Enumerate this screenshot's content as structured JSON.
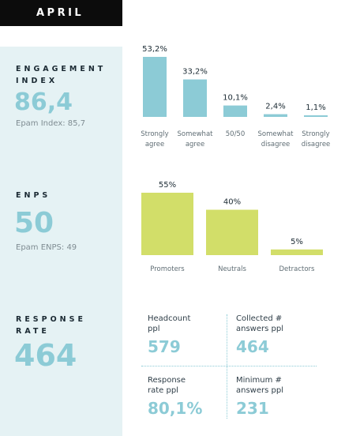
{
  "header": {
    "month": "APRIL"
  },
  "colors": {
    "engagement_bar": "#8ccbd6",
    "enps_bar": "#d2de69",
    "value_blue": "#8ccbd6",
    "sidebar_bg": "#e5f2f4"
  },
  "engagement": {
    "title_line1": "ENGAGEMENT",
    "title_line2": "INDEX",
    "value": "86,4",
    "benchmark": "Epam Index: 85,7"
  },
  "enps": {
    "title": "ENPS",
    "value": "50",
    "benchmark": "Epam ENPS: 49"
  },
  "response_rate": {
    "title_line1": "RESPONSE",
    "title_line2": "RATE",
    "value": "464",
    "cells": [
      {
        "label_line1": "Headcount",
        "label_line2": "ppl",
        "value": "579"
      },
      {
        "label_line1": "Collected #",
        "label_line2": "answers ppl",
        "value": "464"
      },
      {
        "label_line1": "Response",
        "label_line2": "rate ppl",
        "value": "80,1%"
      },
      {
        "label_line1": "Minimum #",
        "label_line2": "answers ppl",
        "value": "231"
      }
    ]
  },
  "chart_data": [
    {
      "type": "bar",
      "categories": [
        [
          "Strongly",
          "agree"
        ],
        [
          "Somewhat",
          "agree"
        ],
        [
          "50/50"
        ],
        [
          "Somewhat",
          "disagree"
        ],
        [
          "Strongly",
          "disagree"
        ]
      ],
      "values": [
        53.2,
        33.2,
        10.1,
        2.4,
        1.1
      ],
      "labels": [
        "53,2%",
        "33,2%",
        "10,1%",
        "2,4%",
        "1,1%"
      ],
      "ylim": [
        0,
        53.2
      ],
      "grid": false
    },
    {
      "type": "bar",
      "categories": [
        [
          "Promoters"
        ],
        [
          "Neutrals"
        ],
        [
          "Detractors"
        ]
      ],
      "values": [
        55,
        40,
        5
      ],
      "labels": [
        "55%",
        "40%",
        "5%"
      ],
      "ylim": [
        0,
        55
      ],
      "grid": false
    }
  ]
}
